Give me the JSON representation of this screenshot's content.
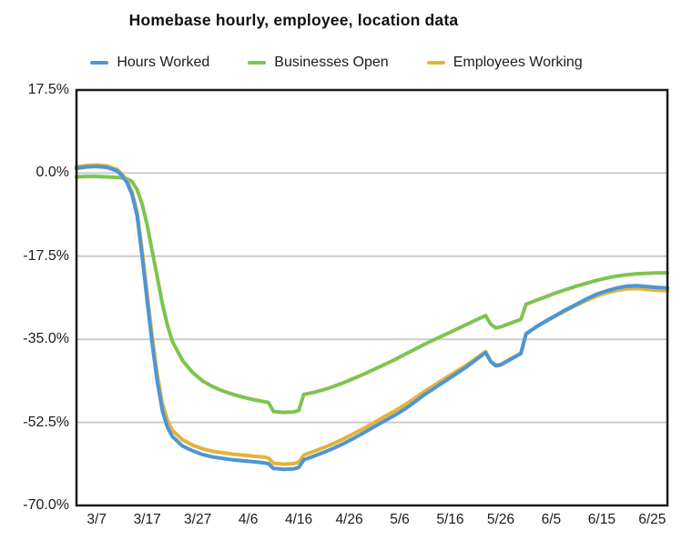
{
  "chart_data": {
    "type": "line",
    "title": "Homebase hourly, employee, location data",
    "xlabel": "",
    "ylabel": "",
    "ylim": [
      -70.0,
      17.5
    ],
    "grid": true,
    "legend_position": "top",
    "y_ticks": [
      {
        "label": "17.5%",
        "value": 17.5
      },
      {
        "label": "0.0%",
        "value": 0.0
      },
      {
        "label": "-17.5%",
        "value": -17.5
      },
      {
        "label": "-35.0%",
        "value": -35.0
      },
      {
        "label": "-52.5%",
        "value": -52.5
      },
      {
        "label": "-70.0%",
        "value": -70.0
      }
    ],
    "x_tick_labels": [
      "3/7",
      "3/17",
      "3/27",
      "4/6",
      "4/16",
      "4/26",
      "5/6",
      "5/16",
      "5/26",
      "6/5",
      "6/15",
      "6/25"
    ],
    "x": [
      "3/3",
      "3/5",
      "3/7",
      "3/9",
      "3/11",
      "3/12",
      "3/13",
      "3/14",
      "3/15",
      "3/16",
      "3/17",
      "3/18",
      "3/19",
      "3/20",
      "3/21",
      "3/22",
      "3/24",
      "3/26",
      "3/28",
      "3/30",
      "4/1",
      "4/3",
      "4/5",
      "4/7",
      "4/9",
      "4/10",
      "4/11",
      "4/13",
      "4/15",
      "4/16",
      "4/17",
      "4/19",
      "4/21",
      "4/23",
      "4/25",
      "4/27",
      "4/29",
      "5/1",
      "5/3",
      "5/5",
      "5/7",
      "5/9",
      "5/11",
      "5/13",
      "5/15",
      "5/17",
      "5/19",
      "5/21",
      "5/23",
      "5/24",
      "5/25",
      "5/26",
      "5/27",
      "5/28",
      "5/29",
      "5/30",
      "5/31",
      "6/2",
      "6/4",
      "6/6",
      "6/8",
      "6/10",
      "6/12",
      "6/14",
      "6/16",
      "6/18",
      "6/20",
      "6/22",
      "6/24",
      "6/26",
      "6/28"
    ],
    "series": [
      {
        "name": "Hours Worked",
        "color": "#4E95D4",
        "values": [
          1.0,
          1.3,
          1.4,
          1.2,
          0.5,
          -0.5,
          -2.0,
          -4.5,
          -9.0,
          -17.5,
          -27.0,
          -36.0,
          -44.0,
          -50.0,
          -53.5,
          -55.5,
          -57.5,
          -58.5,
          -59.3,
          -59.8,
          -60.1,
          -60.4,
          -60.6,
          -60.8,
          -61.0,
          -61.2,
          -62.2,
          -62.4,
          -62.3,
          -62.0,
          -60.4,
          -59.6,
          -58.8,
          -57.9,
          -56.9,
          -55.8,
          -54.6,
          -53.4,
          -52.2,
          -51.0,
          -49.7,
          -48.2,
          -46.6,
          -45.2,
          -43.8,
          -42.4,
          -41.0,
          -39.4,
          -37.8,
          -39.7,
          -40.6,
          -40.4,
          -39.8,
          -39.2,
          -38.6,
          -38.0,
          -33.9,
          -32.4,
          -31.1,
          -29.9,
          -28.7,
          -27.6,
          -26.5,
          -25.5,
          -24.8,
          -24.2,
          -23.8,
          -23.7,
          -23.9,
          -24.1,
          -24.2
        ]
      },
      {
        "name": "Businesses Open",
        "color": "#7EC450",
        "values": [
          -0.8,
          -0.7,
          -0.7,
          -0.8,
          -0.9,
          -1.0,
          -1.2,
          -1.8,
          -3.5,
          -6.5,
          -11.0,
          -16.5,
          -22.0,
          -27.5,
          -32.0,
          -35.5,
          -39.5,
          -42.0,
          -43.8,
          -45.0,
          -45.9,
          -46.6,
          -47.2,
          -47.7,
          -48.1,
          -48.3,
          -50.2,
          -50.4,
          -50.3,
          -50.0,
          -46.6,
          -46.2,
          -45.6,
          -44.9,
          -44.1,
          -43.2,
          -42.3,
          -41.3,
          -40.3,
          -39.3,
          -38.2,
          -37.1,
          -36.0,
          -35.0,
          -34.0,
          -33.0,
          -32.0,
          -31.0,
          -30.0,
          -31.8,
          -32.6,
          -32.4,
          -32.0,
          -31.6,
          -31.2,
          -30.8,
          -27.6,
          -26.8,
          -26.0,
          -25.2,
          -24.5,
          -23.8,
          -23.2,
          -22.6,
          -22.1,
          -21.7,
          -21.4,
          -21.2,
          -21.1,
          -21.0,
          -21.0
        ]
      },
      {
        "name": "Employees Working",
        "color": "#E2B33C",
        "values": [
          1.3,
          1.6,
          1.7,
          1.5,
          0.8,
          -0.2,
          -1.6,
          -4.0,
          -8.2,
          -16.3,
          -25.5,
          -34.5,
          -42.5,
          -48.5,
          -52.0,
          -54.2,
          -56.2,
          -57.3,
          -58.1,
          -58.6,
          -58.9,
          -59.2,
          -59.4,
          -59.6,
          -59.8,
          -60.0,
          -61.1,
          -61.3,
          -61.2,
          -60.9,
          -59.4,
          -58.6,
          -57.8,
          -56.9,
          -55.9,
          -54.8,
          -53.7,
          -52.5,
          -51.3,
          -50.1,
          -48.8,
          -47.4,
          -45.9,
          -44.6,
          -43.2,
          -41.9,
          -40.6,
          -39.1,
          -37.6,
          -39.6,
          -40.5,
          -40.3,
          -39.7,
          -39.1,
          -38.5,
          -37.9,
          -33.8,
          -32.4,
          -31.2,
          -30.0,
          -28.9,
          -27.8,
          -26.8,
          -25.9,
          -25.2,
          -24.7,
          -24.4,
          -24.3,
          -24.5,
          -24.7,
          -24.8
        ]
      }
    ],
    "colors": {
      "axis_text": "#1c1c1c",
      "gridline": "#cbcbcb",
      "plot_border": "#1a1a1a",
      "background": "#ffffff"
    }
  }
}
